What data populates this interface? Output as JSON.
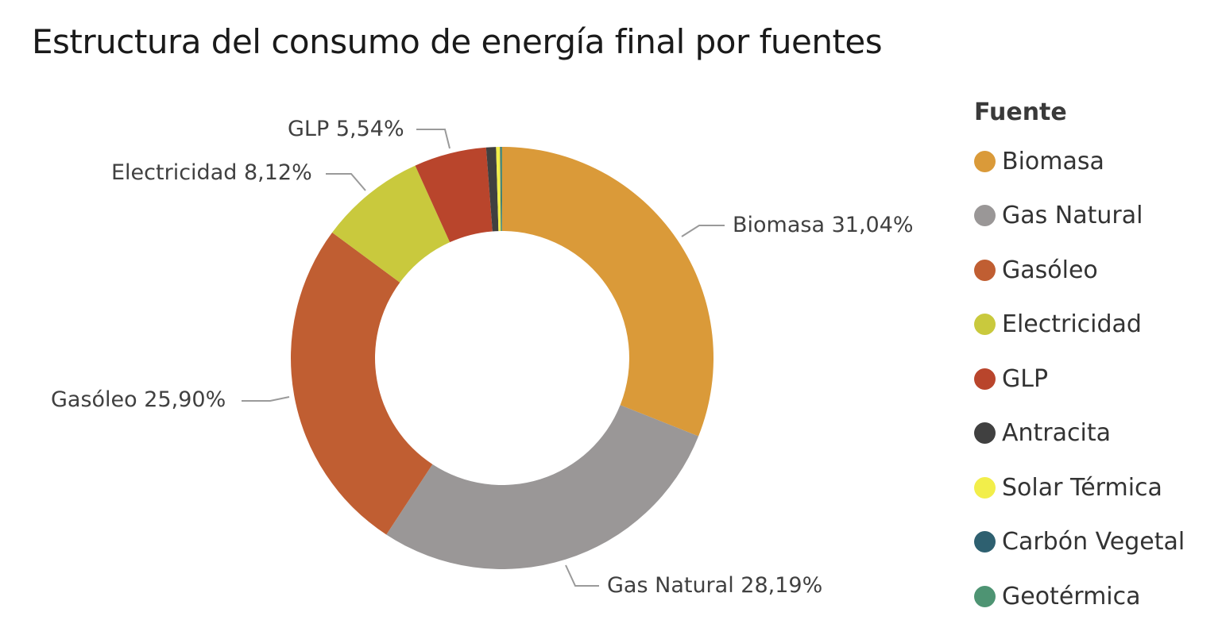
{
  "title": "Estructura del consumo de energía final por fuentes",
  "legend": {
    "title": "Fuente",
    "items": [
      {
        "label": "Biomasa",
        "color": "#DA9A39"
      },
      {
        "label": "Gas Natural",
        "color": "#9A9797"
      },
      {
        "label": "Gasóleo",
        "color": "#C05E32"
      },
      {
        "label": "Electricidad",
        "color": "#C9C93D"
      },
      {
        "label": "GLP",
        "color": "#B9452C"
      },
      {
        "label": "Antracita",
        "color": "#404040"
      },
      {
        "label": "Solar Térmica",
        "color": "#F2EE4A"
      },
      {
        "label": "Carbón Vegetal",
        "color": "#2E6070"
      },
      {
        "label": "Geotérmica",
        "color": "#4E9473"
      }
    ]
  },
  "labels": {
    "biomasa": "Biomasa 31,04%",
    "gas_natural": "Gas Natural 28,19%",
    "gasoleo": "Gasóleo 25,90%",
    "electricidad": "Electricidad 8,12%",
    "glp": "GLP 5,54%"
  },
  "chart_data": {
    "type": "pie",
    "variant": "donut",
    "title": "Estructura del consumo de energía final por fuentes",
    "legend_title": "Fuente",
    "legend_position": "right",
    "categories": [
      "Biomasa",
      "Gas Natural",
      "Gasóleo",
      "Electricidad",
      "GLP",
      "Antracita",
      "Solar Térmica",
      "Carbón Vegetal",
      "Geotérmica"
    ],
    "values": [
      31.04,
      28.19,
      25.9,
      8.12,
      5.54,
      0.75,
      0.3,
      0.08,
      0.08
    ],
    "unit": "%",
    "colors": [
      "#DA9A39",
      "#9A9797",
      "#C05E32",
      "#C9C93D",
      "#B9452C",
      "#404040",
      "#F2EE4A",
      "#2E6070",
      "#4E9473"
    ],
    "data_labels": [
      "Biomasa 31,04%",
      "Gas Natural 28,19%",
      "Gasóleo 25,90%",
      "Electricidad 8,12%",
      "GLP 5,54%"
    ]
  }
}
